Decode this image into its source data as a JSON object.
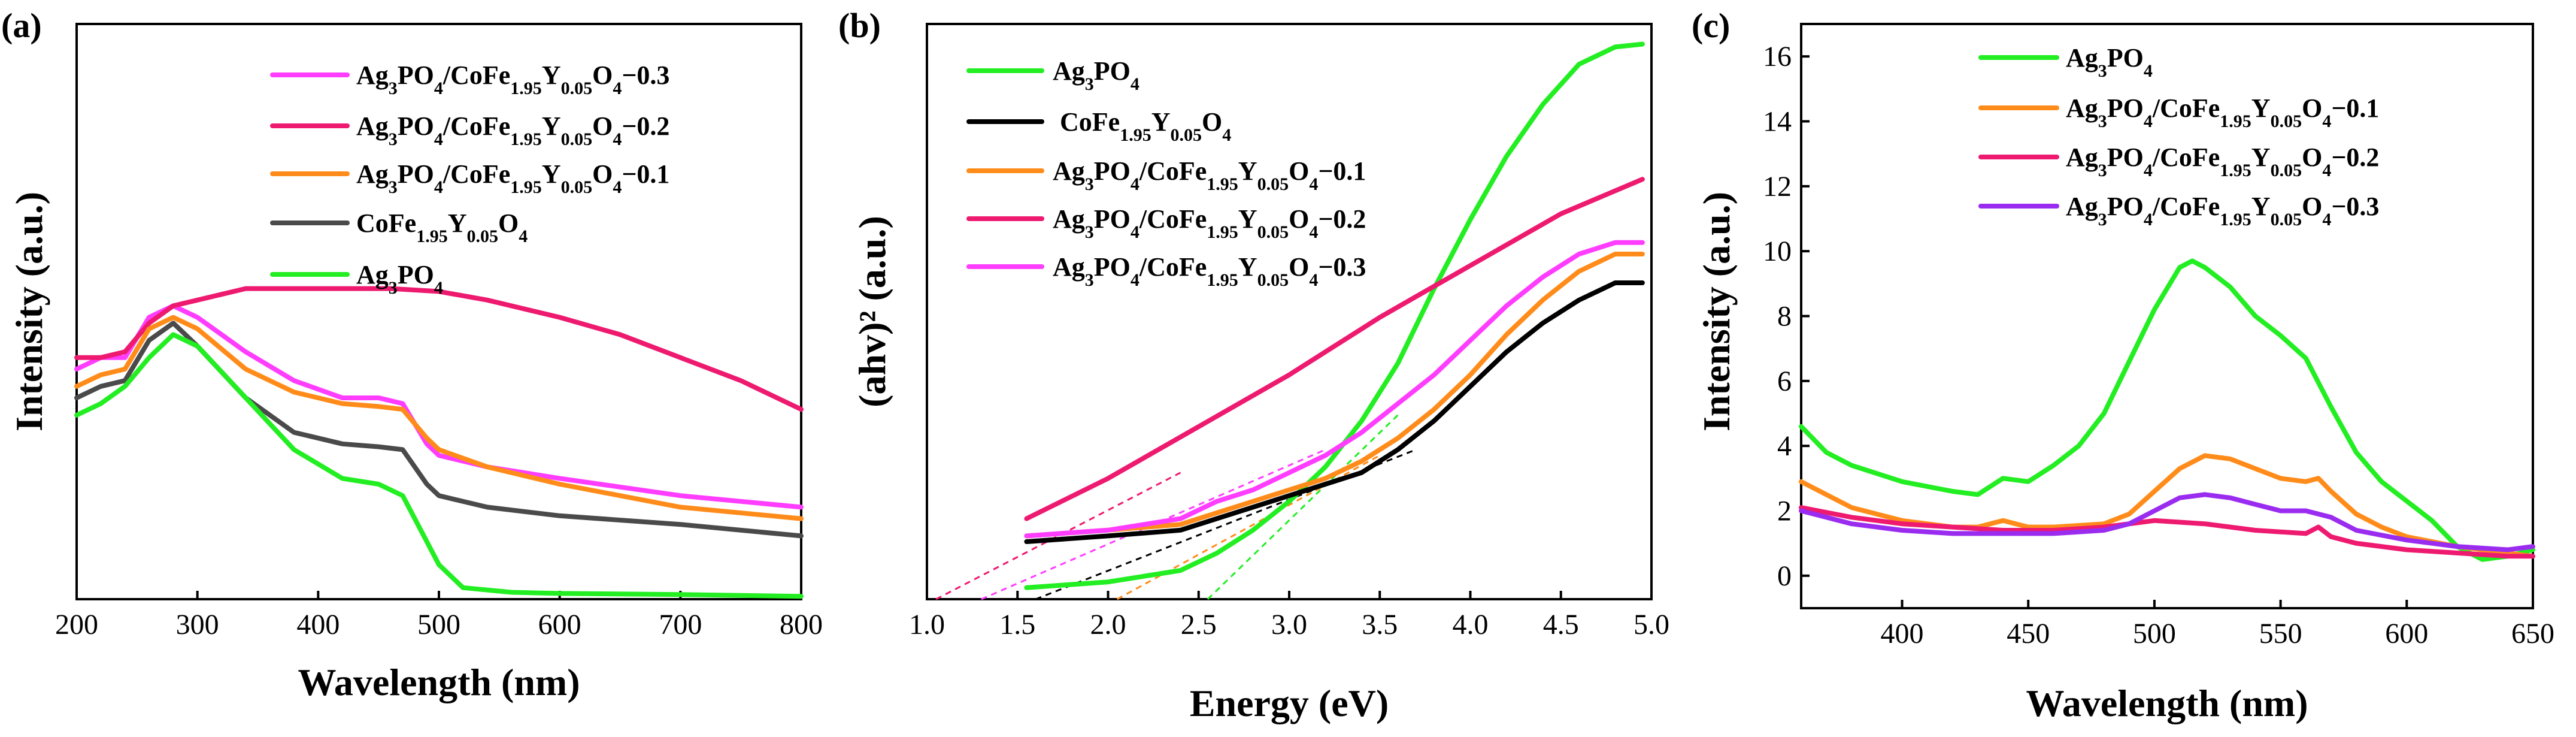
{
  "chart_data": [
    {
      "type": "line",
      "panel_label": "(a)",
      "xlabel": "Wavelength (nm)",
      "ylabel": "Intensity (a.u.)",
      "xlim": [
        200,
        800
      ],
      "ylim": [
        0,
        1
      ],
      "xticks": [
        200,
        300,
        400,
        500,
        600,
        700,
        800
      ],
      "yticks_shown": false,
      "legend": "top-right",
      "series": [
        {
          "name": "Ag3PO4/CoFe1.95Y0.05O4-0.3",
          "color": "#ff3dff",
          "x": [
            200,
            220,
            240,
            260,
            280,
            300,
            340,
            380,
            420,
            450,
            470,
            490,
            500,
            540,
            600,
            700,
            800
          ],
          "y": [
            0.4,
            0.42,
            0.42,
            0.49,
            0.51,
            0.49,
            0.43,
            0.38,
            0.35,
            0.35,
            0.34,
            0.27,
            0.25,
            0.23,
            0.21,
            0.18,
            0.16
          ]
        },
        {
          "name": "Ag3PO4/CoFe1.95Y0.05O4-0.2",
          "color": "#ee1a70",
          "x": [
            200,
            220,
            240,
            260,
            280,
            300,
            340,
            380,
            420,
            460,
            500,
            540,
            600,
            650,
            700,
            750,
            800
          ],
          "y": [
            0.42,
            0.42,
            0.43,
            0.48,
            0.51,
            0.52,
            0.54,
            0.54,
            0.54,
            0.54,
            0.535,
            0.52,
            0.49,
            0.46,
            0.42,
            0.38,
            0.33
          ]
        },
        {
          "name": "Ag3PO4/CoFe1.95Y0.05O4-0.1",
          "color": "#ff8c1a",
          "x": [
            200,
            220,
            240,
            260,
            280,
            300,
            340,
            380,
            420,
            450,
            470,
            490,
            500,
            540,
            600,
            700,
            800
          ],
          "y": [
            0.37,
            0.39,
            0.4,
            0.47,
            0.49,
            0.47,
            0.4,
            0.36,
            0.34,
            0.335,
            0.33,
            0.28,
            0.26,
            0.23,
            0.2,
            0.16,
            0.14
          ]
        },
        {
          "name": "CoFe1.95Y0.05O4",
          "color": "#4a4a4a",
          "x": [
            200,
            220,
            240,
            260,
            280,
            300,
            340,
            380,
            420,
            450,
            470,
            490,
            500,
            540,
            600,
            700,
            800
          ],
          "y": [
            0.35,
            0.37,
            0.38,
            0.45,
            0.48,
            0.44,
            0.35,
            0.29,
            0.27,
            0.265,
            0.26,
            0.2,
            0.18,
            0.16,
            0.145,
            0.13,
            0.11
          ]
        },
        {
          "name": "Ag3PO4",
          "color": "#22ee22",
          "x": [
            200,
            220,
            240,
            260,
            280,
            300,
            340,
            380,
            420,
            450,
            470,
            480,
            500,
            520,
            560,
            600,
            700,
            800
          ],
          "y": [
            0.32,
            0.34,
            0.37,
            0.42,
            0.46,
            0.44,
            0.35,
            0.26,
            0.21,
            0.2,
            0.18,
            0.14,
            0.06,
            0.02,
            0.012,
            0.01,
            0.008,
            0.005
          ]
        }
      ]
    },
    {
      "type": "line",
      "panel_label": "(b)",
      "xlabel": "Energy (eV)",
      "ylabel": "(ahv)²  (a.u.)",
      "xlim": [
        1.0,
        5.0
      ],
      "ylim": [
        0,
        1
      ],
      "xticks": [
        "1.0",
        "1.5",
        "2.0",
        "2.5",
        "3.0",
        "3.5",
        "4.0",
        "4.5",
        "5.0"
      ],
      "yticks_shown": false,
      "legend": "top-left",
      "series": [
        {
          "name": "Ag3PO4",
          "color": "#22ee22",
          "x": [
            1.55,
            2.0,
            2.4,
            2.6,
            2.8,
            3.0,
            3.2,
            3.4,
            3.6,
            3.8,
            4.0,
            4.2,
            4.4,
            4.6,
            4.8,
            4.95
          ],
          "y": [
            0.02,
            0.03,
            0.05,
            0.08,
            0.12,
            0.17,
            0.23,
            0.31,
            0.41,
            0.54,
            0.66,
            0.77,
            0.86,
            0.93,
            0.96,
            0.965
          ]
        },
        {
          "name": "CoFe1.95Y0.05O4",
          "color": "#000000",
          "x": [
            1.55,
            2.0,
            2.4,
            2.6,
            2.8,
            3.0,
            3.2,
            3.4,
            3.6,
            3.8,
            4.0,
            4.2,
            4.4,
            4.6,
            4.8,
            4.95
          ],
          "y": [
            0.1,
            0.11,
            0.12,
            0.14,
            0.16,
            0.18,
            0.2,
            0.22,
            0.26,
            0.31,
            0.37,
            0.43,
            0.48,
            0.52,
            0.55,
            0.55
          ]
        },
        {
          "name": "Ag3PO4/CoFe1.95Y0.05O4-0.1",
          "color": "#ff8c1a",
          "x": [
            1.55,
            2.0,
            2.4,
            2.6,
            2.8,
            3.0,
            3.2,
            3.4,
            3.6,
            3.8,
            4.0,
            4.2,
            4.4,
            4.6,
            4.8,
            4.95
          ],
          "y": [
            0.11,
            0.12,
            0.13,
            0.15,
            0.17,
            0.19,
            0.21,
            0.24,
            0.28,
            0.33,
            0.39,
            0.46,
            0.52,
            0.57,
            0.6,
            0.6
          ]
        },
        {
          "name": "Ag3PO4/CoFe1.95Y0.05O4-0.2",
          "color": "#ee1a70",
          "x": [
            1.55,
            2.0,
            2.5,
            3.0,
            3.5,
            4.0,
            4.5,
            4.95
          ],
          "y": [
            0.14,
            0.21,
            0.3,
            0.39,
            0.49,
            0.58,
            0.67,
            0.73
          ]
        },
        {
          "name": "Ag3PO4/CoFe1.95Y0.05O4-0.3",
          "color": "#ff3dff",
          "x": [
            1.55,
            2.0,
            2.4,
            2.6,
            2.8,
            3.0,
            3.2,
            3.4,
            3.6,
            3.8,
            4.0,
            4.2,
            4.4,
            4.6,
            4.8,
            4.95
          ],
          "y": [
            0.11,
            0.12,
            0.14,
            0.17,
            0.19,
            0.22,
            0.25,
            0.29,
            0.34,
            0.39,
            0.45,
            0.51,
            0.56,
            0.6,
            0.62,
            0.62
          ]
        }
      ],
      "fit_lines": [
        {
          "color": "#22ee22",
          "x": [
            2.55,
            3.6
          ],
          "y": [
            0.0,
            0.32
          ]
        },
        {
          "color": "#000000",
          "x": [
            1.6,
            3.7
          ],
          "y": [
            0.0,
            0.26
          ]
        },
        {
          "color": "#ff8c1a",
          "x": [
            2.05,
            3.5
          ],
          "y": [
            0.0,
            0.25
          ]
        },
        {
          "color": "#ee1a70",
          "x": [
            1.05,
            2.4
          ],
          "y": [
            0.0,
            0.22
          ]
        },
        {
          "color": "#ff3dff",
          "x": [
            1.3,
            3.2
          ],
          "y": [
            0.0,
            0.26
          ]
        }
      ]
    },
    {
      "type": "line",
      "panel_label": "(c)",
      "xlabel": "Wavelength (nm)",
      "ylabel": "Intensity (a.u.)",
      "xlim": [
        360,
        650
      ],
      "ylim": [
        -1,
        17
      ],
      "xticks": [
        400,
        450,
        500,
        550,
        600,
        650
      ],
      "yticks": [
        0,
        2,
        4,
        6,
        8,
        10,
        12,
        14,
        16
      ],
      "legend": "top-left",
      "series": [
        {
          "name": "Ag3PO4",
          "color": "#22ee22",
          "x": [
            360,
            370,
            380,
            400,
            420,
            430,
            440,
            450,
            460,
            470,
            480,
            490,
            500,
            510,
            515,
            520,
            530,
            540,
            550,
            560,
            570,
            580,
            590,
            600,
            610,
            620,
            630,
            640,
            650
          ],
          "y": [
            4.6,
            3.8,
            3.4,
            2.9,
            2.6,
            2.5,
            3.0,
            2.9,
            3.4,
            4.0,
            5.0,
            6.6,
            8.2,
            9.5,
            9.7,
            9.5,
            8.9,
            8.0,
            7.4,
            6.7,
            5.2,
            3.8,
            2.9,
            2.3,
            1.7,
            0.9,
            0.5,
            0.6,
            0.8
          ]
        },
        {
          "name": "Ag3PO4/CoFe1.95Y0.05O4-0.1",
          "color": "#ff8c1a",
          "x": [
            360,
            380,
            400,
            420,
            430,
            440,
            450,
            460,
            480,
            490,
            500,
            510,
            520,
            530,
            540,
            550,
            560,
            565,
            570,
            580,
            590,
            600,
            620,
            640,
            650
          ],
          "y": [
            2.9,
            2.1,
            1.7,
            1.5,
            1.5,
            1.7,
            1.5,
            1.5,
            1.6,
            1.9,
            2.6,
            3.3,
            3.7,
            3.6,
            3.3,
            3.0,
            2.9,
            3.0,
            2.6,
            1.9,
            1.5,
            1.2,
            0.9,
            0.7,
            0.6
          ]
        },
        {
          "name": "Ag3PO4/CoFe1.95Y0.05O4-0.2",
          "color": "#ee1a70",
          "x": [
            360,
            380,
            400,
            420,
            440,
            460,
            480,
            500,
            520,
            540,
            560,
            565,
            570,
            580,
            600,
            620,
            640,
            650
          ],
          "y": [
            2.1,
            1.8,
            1.6,
            1.5,
            1.4,
            1.4,
            1.5,
            1.7,
            1.6,
            1.4,
            1.3,
            1.5,
            1.2,
            1.0,
            0.8,
            0.7,
            0.6,
            0.6
          ]
        },
        {
          "name": "Ag3PO4/CoFe1.95Y0.05O4-0.3",
          "color": "#9a2cf0",
          "x": [
            360,
            380,
            400,
            420,
            440,
            460,
            480,
            490,
            500,
            510,
            520,
            530,
            540,
            550,
            560,
            570,
            580,
            600,
            620,
            640,
            650
          ],
          "y": [
            2.0,
            1.6,
            1.4,
            1.3,
            1.3,
            1.3,
            1.4,
            1.6,
            2.0,
            2.4,
            2.5,
            2.4,
            2.2,
            2.0,
            2.0,
            1.8,
            1.4,
            1.1,
            0.9,
            0.8,
            0.9
          ]
        }
      ]
    }
  ]
}
